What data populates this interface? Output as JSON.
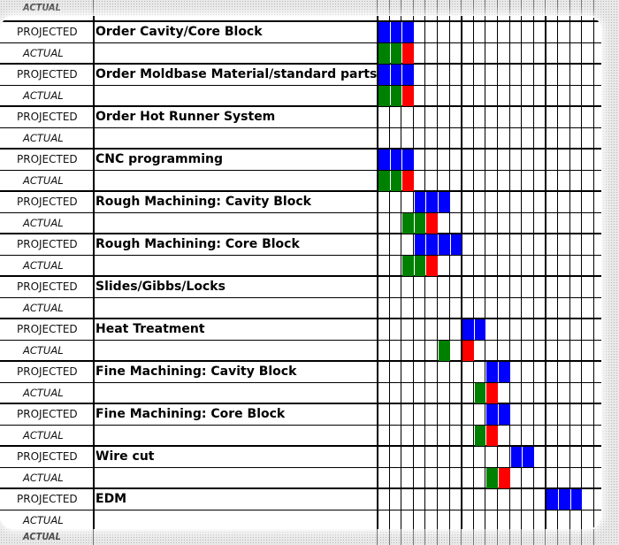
{
  "ghost_top_label": "ACTUAL",
  "ghost_bottom_label": "ACTUAL",
  "colors": {
    "projected": "#0000ff",
    "actual_start": "#008000",
    "actual_end": "#ff0000"
  },
  "rows": [
    {
      "type": "PROJECTED",
      "task": "Order Cavity/Core Block"
    },
    {
      "type": "ACTUAL",
      "task": ""
    },
    {
      "type": "PROJECTED",
      "task": "Order Moldbase Material/standard parts"
    },
    {
      "type": "ACTUAL",
      "task": ""
    },
    {
      "type": "PROJECTED",
      "task": "Order Hot Runner System"
    },
    {
      "type": "ACTUAL",
      "task": ""
    },
    {
      "type": "PROJECTED",
      "task": "CNC programming"
    },
    {
      "type": "ACTUAL",
      "task": ""
    },
    {
      "type": "PROJECTED",
      "task": "Rough Machining: Cavity Block"
    },
    {
      "type": "ACTUAL",
      "task": ""
    },
    {
      "type": "PROJECTED",
      "task": "Rough Machining: Core Block"
    },
    {
      "type": "ACTUAL",
      "task": ""
    },
    {
      "type": "PROJECTED",
      "task": "Slides/Gibbs/Locks"
    },
    {
      "type": "ACTUAL",
      "task": ""
    },
    {
      "type": "PROJECTED",
      "task": "Heat Treatment"
    },
    {
      "type": "ACTUAL",
      "task": ""
    },
    {
      "type": "PROJECTED",
      "task": "Fine Machining: Cavity Block"
    },
    {
      "type": "ACTUAL",
      "task": ""
    },
    {
      "type": "PROJECTED",
      "task": "Fine Machining: Core Block"
    },
    {
      "type": "ACTUAL",
      "task": ""
    },
    {
      "type": "PROJECTED",
      "task": "Wire cut"
    },
    {
      "type": "ACTUAL",
      "task": ""
    },
    {
      "type": "PROJECTED",
      "task": "EDM"
    },
    {
      "type": "ACTUAL",
      "task": ""
    }
  ],
  "fills": [
    {
      "row": 0,
      "start": 0,
      "colors": [
        "projected",
        "projected",
        "projected"
      ]
    },
    {
      "row": 1,
      "start": 0,
      "colors": [
        "actual_start",
        "actual_start",
        "actual_end"
      ]
    },
    {
      "row": 2,
      "start": 0,
      "colors": [
        "projected",
        "projected",
        "projected"
      ]
    },
    {
      "row": 3,
      "start": 0,
      "colors": [
        "actual_start",
        "actual_start",
        "actual_end"
      ]
    },
    {
      "row": 6,
      "start": 0,
      "colors": [
        "projected",
        "projected",
        "projected"
      ]
    },
    {
      "row": 7,
      "start": 0,
      "colors": [
        "actual_start",
        "actual_start",
        "actual_end"
      ]
    },
    {
      "row": 8,
      "start": 3,
      "colors": [
        "projected",
        "projected",
        "projected"
      ]
    },
    {
      "row": 9,
      "start": 2,
      "colors": [
        "actual_start",
        "actual_start",
        "actual_end"
      ]
    },
    {
      "row": 10,
      "start": 3,
      "colors": [
        "projected",
        "projected",
        "projected",
        "projected"
      ]
    },
    {
      "row": 11,
      "start": 2,
      "colors": [
        "actual_start",
        "actual_start",
        "actual_end"
      ]
    },
    {
      "row": 14,
      "start": 7,
      "colors": [
        "projected",
        "projected"
      ]
    },
    {
      "row": 15,
      "start": 5,
      "colors": [
        "actual_start"
      ]
    },
    {
      "row": 15,
      "start": 7,
      "colors": [
        "actual_end"
      ]
    },
    {
      "row": 16,
      "start": 9,
      "colors": [
        "projected",
        "projected"
      ]
    },
    {
      "row": 17,
      "start": 8,
      "colors": [
        "actual_start",
        "actual_end"
      ]
    },
    {
      "row": 18,
      "start": 9,
      "colors": [
        "projected",
        "projected"
      ]
    },
    {
      "row": 19,
      "start": 8,
      "colors": [
        "actual_start",
        "actual_end"
      ]
    },
    {
      "row": 20,
      "start": 11,
      "colors": [
        "projected",
        "projected"
      ]
    },
    {
      "row": 21,
      "start": 9,
      "colors": [
        "actual_start",
        "actual_end"
      ]
    },
    {
      "row": 22,
      "start": 14,
      "colors": [
        "projected",
        "projected",
        "projected"
      ]
    }
  ]
}
